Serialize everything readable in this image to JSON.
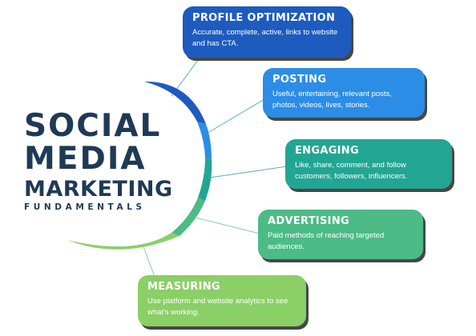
{
  "title": {
    "line1": "SOCIAL",
    "line2": "MEDIA",
    "line3": "MARKETING",
    "line4": "FUNDAMENTALS"
  },
  "colors": {
    "title": "#1f3a55",
    "profile": "#1d5bbf",
    "posting": "#2b8de6",
    "engaging": "#22a693",
    "advertising": "#4cbb86",
    "measuring": "#8bcf67"
  },
  "cards": {
    "profile": {
      "title": "PROFILE OPTIMIZATION",
      "desc": "Accurate, complete, active, links to website and has CTA."
    },
    "posting": {
      "title": "POSTING",
      "desc": "Useful, entertaining, relevant posts, photos, videos, lives, stories."
    },
    "engaging": {
      "title": "ENGAGING",
      "desc": "Like, share, comment, and follow customers, followers, influencers."
    },
    "advertising": {
      "title": "ADVERTISING",
      "desc": "Paid methods of reaching targeted audiences."
    },
    "measuring": {
      "title": "MEASURING",
      "desc": "Use platform and website analytics to see what's working."
    }
  }
}
